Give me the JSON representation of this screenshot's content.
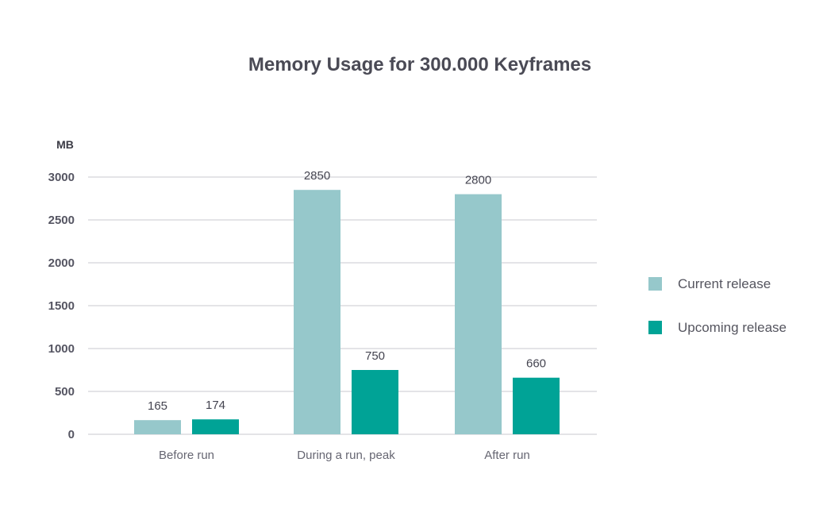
{
  "chart_data": {
    "type": "bar",
    "title": "Memory Usage for 300.000 Keyframes",
    "ylabel": "MB",
    "xlabel": "",
    "categories": [
      "Before run",
      "During a run, peak",
      "After run"
    ],
    "series": [
      {
        "name": "Current release",
        "color": "#96c8cb",
        "values": [
          165,
          2850,
          2800
        ],
        "labels": [
          "165",
          "2850",
          "2800"
        ]
      },
      {
        "name": "Upcoming release",
        "color": "#00a396",
        "values": [
          174,
          750,
          660
        ],
        "labels": [
          "174",
          "750",
          "660"
        ]
      }
    ],
    "ylim": [
      0,
      3000
    ],
    "yticks": [
      0,
      500,
      1000,
      1500,
      2000,
      2500,
      3000
    ],
    "ytick_labels": [
      "0",
      "500",
      "1000",
      "1500",
      "2000",
      "2500",
      "3000"
    ],
    "grid": true,
    "legend": "right",
    "gridline_color": "#c9c9cf"
  }
}
